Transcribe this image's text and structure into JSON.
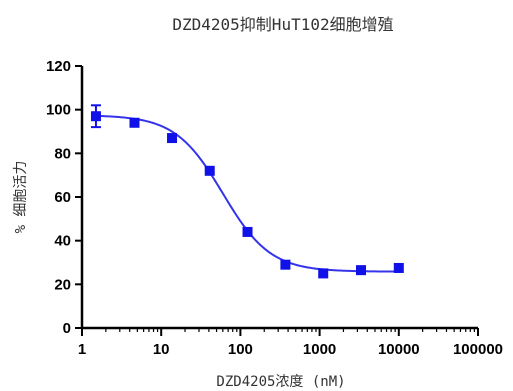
{
  "chart_data": {
    "type": "scatter",
    "title": "DZD4205抑制HuT102细胞增殖",
    "xlabel": "DZD4205浓度 (nM)",
    "ylabel": "% 细胞活力",
    "x_scale": "log",
    "xlim": [
      1,
      100000
    ],
    "ylim": [
      0,
      120
    ],
    "x_ticks": [
      1,
      10,
      100,
      1000,
      10000,
      100000
    ],
    "x_tick_labels": [
      "1",
      "10",
      "100",
      "1000",
      "10000",
      "100000"
    ],
    "y_ticks": [
      0,
      20,
      40,
      60,
      80,
      100,
      120
    ],
    "y_tick_labels": [
      "0",
      "20",
      "40",
      "60",
      "80",
      "100",
      "120"
    ],
    "grid": false,
    "series": [
      {
        "color": "#1010e8",
        "marker": "square",
        "x": [
          1.5,
          4.6,
          13.7,
          41,
          123,
          370,
          1111,
          3333,
          10000
        ],
        "y": [
          97,
          94,
          87,
          72,
          44,
          29,
          25,
          26.5,
          27.5
        ],
        "error": [
          5,
          1.2,
          1.2,
          1.2,
          1,
          1,
          1,
          1,
          1
        ],
        "fit": {
          "top": 97.5,
          "bottom": 25.8,
          "ec50": 60,
          "hill": 1.45
        }
      }
    ]
  }
}
